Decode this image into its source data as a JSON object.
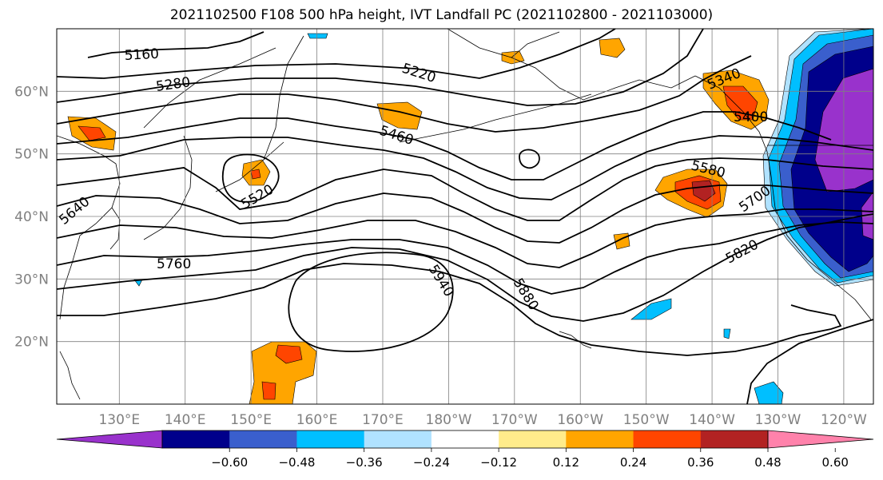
{
  "title": "2021102500 F108 500 hPa height, IVT Landfall PC (2021102800 - 2021103000)",
  "map": {
    "lat_labels": [
      {
        "label": "60°N",
        "lat": 60
      },
      {
        "label": "50°N",
        "lat": 50
      },
      {
        "label": "40°N",
        "lat": 40
      },
      {
        "label": "30°N",
        "lat": 30
      },
      {
        "label": "20°N",
        "lat": 20
      }
    ],
    "lon_labels": [
      {
        "label": "130°E",
        "lon": 130
      },
      {
        "label": "140°E",
        "lon": 140
      },
      {
        "label": "150°E",
        "lon": 150
      },
      {
        "label": "160°E",
        "lon": 160
      },
      {
        "label": "170°E",
        "lon": 170
      },
      {
        "label": "180°W",
        "lon": 180
      },
      {
        "label": "170°W",
        "lon": 190
      },
      {
        "label": "160°W",
        "lon": 200
      },
      {
        "label": "150°W",
        "lon": 210
      },
      {
        "label": "140°W",
        "lon": 220
      },
      {
        "label": "130°W",
        "lon": 230
      },
      {
        "label": "120°W",
        "lon": 240
      }
    ],
    "lon_range": [
      120.5,
      244.5
    ],
    "lat_range": [
      10,
      70
    ],
    "contour_labels": [
      "5160",
      "5280",
      "5220",
      "5340",
      "5400",
      "5460",
      "5520",
      "5580",
      "5640",
      "5700",
      "5760",
      "5820",
      "5880",
      "5940"
    ],
    "tick_label_color": "#808080"
  },
  "colorbar": {
    "tick_labels": [
      "−0.60",
      "−0.48",
      "−0.36",
      "−0.24",
      "−0.12",
      "0.12",
      "0.24",
      "0.36",
      "0.48",
      "0.60"
    ],
    "colors": [
      "#9932cc",
      "#00008b",
      "#3a5fcd",
      "#00bfff",
      "#b0e2ff",
      "#ffffff",
      "#ffec8b",
      "#ffa500",
      "#ff4500",
      "#b22222",
      "#ff82ab"
    ]
  }
}
